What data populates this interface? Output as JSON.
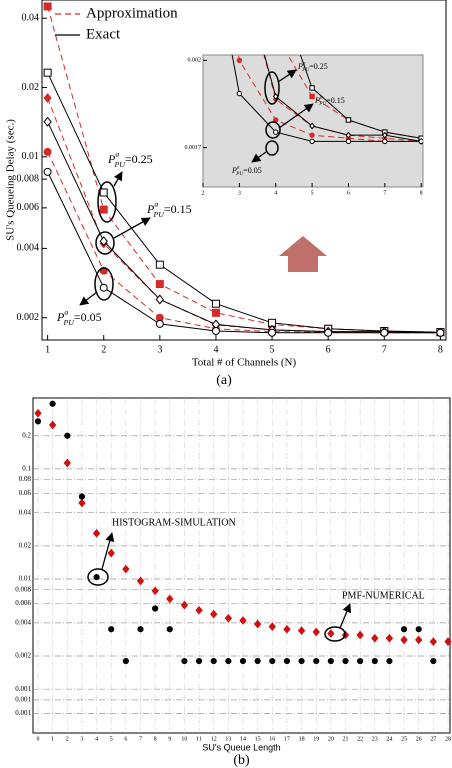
{
  "chart_data": [
    {
      "type": "line",
      "xlabel": "Total # of Channels (N)",
      "ylabel": "SU's Queueing Delay (sec.)",
      "caption": "(a)",
      "log_y": true,
      "legend": "upper left",
      "x": [
        1,
        2,
        3,
        4,
        5,
        6,
        7,
        8
      ],
      "xlim": [
        0.9,
        8.1
      ],
      "xticks": [
        1,
        2,
        3,
        4,
        5,
        6,
        7,
        8
      ],
      "ylim": [
        0.0016,
        0.048
      ],
      "yticks": [
        0.002,
        0.004,
        0.006,
        0.008,
        0.01,
        0.02,
        0.04
      ],
      "series": [
        {
          "name": "Approximation",
          "color": "#d42a2a",
          "dash": "dashed",
          "marker": "square",
          "marker_filled": true,
          "values": [
            0.045,
            0.0059,
            0.0028,
            0.0021,
            0.00187,
            0.00179,
            0.00175,
            0.00173
          ]
        },
        {
          "name": "Approximation",
          "color": "#d42a2a",
          "dash": "dashed",
          "marker": "diamond",
          "marker_filled": true,
          "values": [
            0.018,
            0.0042,
            0.0024,
            0.00186,
            0.00177,
            0.00174,
            0.00173,
            0.00172
          ]
        },
        {
          "name": "Approximation",
          "color": "#d42a2a",
          "dash": "dashed",
          "marker": "circle",
          "marker_filled": true,
          "values": [
            0.0105,
            0.0032,
            0.002,
            0.00179,
            0.00174,
            0.00173,
            0.00172,
            0.00172
          ]
        },
        {
          "name": "Exact",
          "color": "#000000",
          "dash": "solid",
          "marker": "square",
          "marker_filled": false,
          "values": [
            0.0232,
            0.007,
            0.0034,
            0.0023,
            0.0019,
            0.00179,
            0.00175,
            0.00173
          ]
        },
        {
          "name": "Exact",
          "color": "#000000",
          "dash": "solid",
          "marker": "diamond",
          "marker_filled": false,
          "values": [
            0.0142,
            0.0043,
            0.0024,
            0.00187,
            0.00177,
            0.00174,
            0.00174,
            0.00172
          ]
        },
        {
          "name": "Exact",
          "color": "#000000",
          "dash": "solid",
          "marker": "circle",
          "marker_filled": false,
          "values": [
            0.0086,
            0.0027,
            0.00188,
            0.00175,
            0.00172,
            0.00172,
            0.00172,
            0.00172
          ]
        }
      ],
      "annotations": [
        {
          "symbol": "P",
          "sup": "a",
          "sub": "PU",
          "text": "=0.25"
        },
        {
          "symbol": "P",
          "sup": "a",
          "sub": "PU",
          "text": "=0.15"
        },
        {
          "symbol": "P",
          "sup": "a",
          "sub": "PU",
          "text": "=0.05"
        }
      ],
      "inset": {
        "xlim": [
          2,
          8.05
        ],
        "xticks": [
          2,
          3,
          4,
          5,
          6,
          7,
          8
        ],
        "ylim": [
          0.00158,
          0.00202
        ],
        "yticks": [
          0.002,
          0.0017
        ],
        "annotations": [
          {
            "symbol": "P",
            "sup": "a",
            "sub": "PU",
            "text": "=0.25"
          },
          {
            "symbol": "P",
            "sup": "a",
            "sub": "PU",
            "text": "=0.15"
          },
          {
            "symbol": "P",
            "sup": "a",
            "sub": "PU",
            "text": "=0.05"
          }
        ]
      }
    },
    {
      "type": "scatter",
      "xlabel": "SU's Queue Length",
      "caption": "(b)",
      "log_y": true,
      "grid": true,
      "xlim": [
        0,
        28
      ],
      "xticks": [
        0,
        1,
        2,
        3,
        4,
        5,
        6,
        7,
        8,
        9,
        10,
        11,
        12,
        13,
        14,
        15,
        16,
        17,
        18,
        19,
        20,
        21,
        22,
        23,
        24,
        25,
        26,
        27,
        28
      ],
      "ylim": [
        0.0004,
        0.44
      ],
      "yticks": [
        0.2,
        0.1,
        0.08,
        0.06,
        0.04,
        0.02,
        0.01,
        0.008,
        0.006,
        0.004,
        0.002,
        0.001,
        {
          "value": 0.0008,
          "label": "0.001"
        },
        {
          "value": 0.0006,
          "label": "0.001"
        }
      ],
      "series": [
        {
          "name": "PMF-NUMERICAL",
          "color": "#d01010",
          "marker": "diamond",
          "x": [
            0,
            1,
            2,
            3,
            4,
            5,
            6,
            7,
            8,
            9,
            10,
            11,
            12,
            13,
            14,
            15,
            16,
            17,
            18,
            19,
            20,
            21,
            22,
            23,
            24,
            25,
            26,
            27,
            28
          ],
          "values": [
            0.32,
            0.25,
            0.113,
            0.049,
            0.026,
            0.0172,
            0.0123,
            0.0096,
            0.0078,
            0.0066,
            0.0058,
            0.0052,
            0.0048,
            0.0044,
            0.0042,
            0.0039,
            0.0037,
            0.0035,
            0.0034,
            0.0033,
            0.0032,
            0.0031,
            0.0031,
            0.0029,
            0.0029,
            0.0028,
            0.0028,
            0.0027,
            0.0027
          ]
        },
        {
          "name": "HISTOGRAM-SIMULATION",
          "color": "#000000",
          "marker": "circle",
          "x": [
            0,
            1,
            2,
            3,
            4,
            5,
            6,
            7,
            8,
            9,
            10,
            11,
            12,
            13,
            14,
            15,
            16,
            17,
            18,
            19,
            20,
            21,
            22,
            23,
            24,
            25,
            26,
            27
          ],
          "values": [
            0.27,
            0.39,
            0.2,
            0.056,
            0.0104,
            0.0035,
            0.0018,
            0.0035,
            0.0054,
            0.0035,
            0.0018,
            0.0018,
            0.0018,
            0.0018,
            0.0018,
            0.0018,
            0.0018,
            0.0018,
            0.0018,
            0.0018,
            0.0018,
            0.0018,
            0.0018,
            0.0018,
            0.0018,
            0.0035,
            0.0035,
            0.0018
          ]
        }
      ]
    }
  ]
}
